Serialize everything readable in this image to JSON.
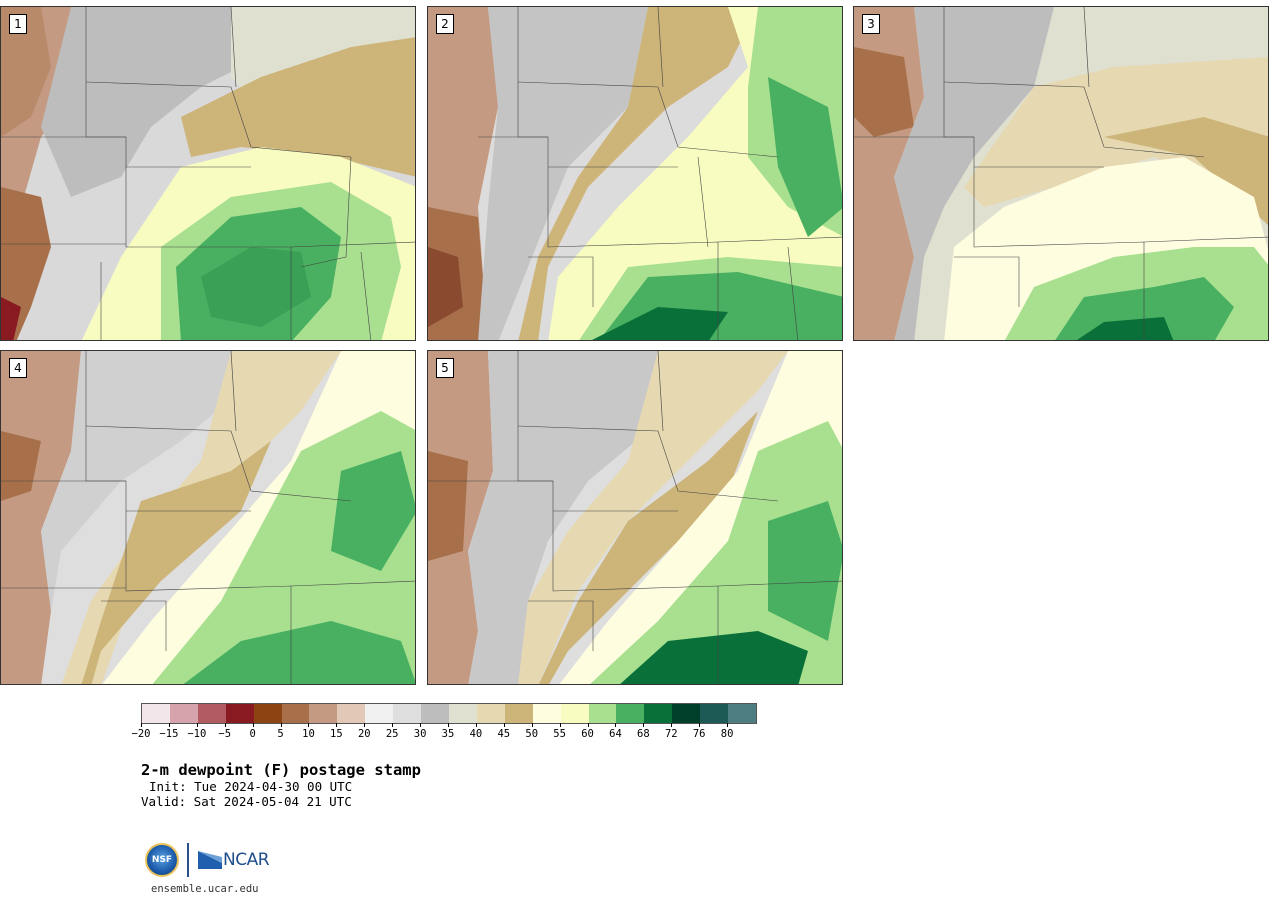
{
  "panels": [
    {
      "label": "1"
    },
    {
      "label": "2"
    },
    {
      "label": "3"
    },
    {
      "label": "4"
    },
    {
      "label": "5"
    }
  ],
  "colorbar": {
    "colors": [
      "#f3e6ea",
      "#d6a2ab",
      "#b25b63",
      "#8a1a22",
      "#8c4413",
      "#a8704a",
      "#c49a82",
      "#e2c8b6",
      "#f0f0f0",
      "#dedede",
      "#bdbdbd",
      "#e0e0d0",
      "#e6d8b0",
      "#cdb57a",
      "#fffde0",
      "#f8fcc0",
      "#a8e090",
      "#48b060",
      "#087038",
      "#00402a",
      "#1e5a55",
      "#4e7e82"
    ],
    "tick_labels": [
      "−20",
      "−15",
      "−10",
      "−5",
      "0",
      "5",
      "10",
      "15",
      "20",
      "25",
      "30",
      "35",
      "40",
      "45",
      "50",
      "55",
      "60",
      "64",
      "68",
      "72",
      "76",
      "80"
    ]
  },
  "text": {
    "title": "2-m dewpoint (F) postage stamp",
    "init": "Init: Tue 2024-04-30 00 UTC",
    "valid": "Valid: Sat 2024-05-04 21 UTC",
    "site": "ensemble.ucar.edu",
    "nsf_logo": "NSF",
    "ncar_logo": "NCAR"
  }
}
